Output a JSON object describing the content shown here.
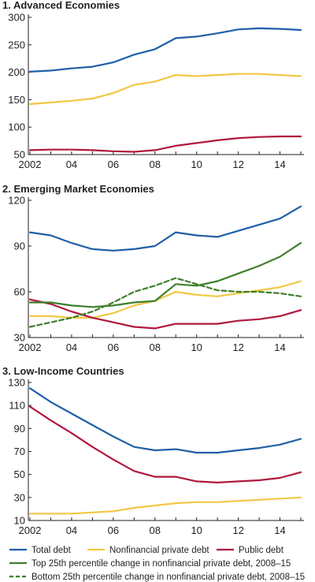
{
  "colors": {
    "total": "#1f5fa8",
    "private": "#f2c744",
    "public": "#b0183d",
    "top25": "#3f7f2c",
    "bottom25": "#3f7f2c"
  },
  "legend": {
    "total": "Total debt",
    "private": "Nonfinancial private debt",
    "public": "Public debt",
    "top25": "Top 25th percentile change in nonfinancial private debt, 2008–15",
    "bottom25": "Bottom 25th percentile change in nonfinancial private debt, 2008–15"
  },
  "chart_data": [
    {
      "type": "line",
      "title": "1. Advanced Economies",
      "x": [
        2002,
        2003,
        2004,
        2005,
        2006,
        2007,
        2008,
        2009,
        2010,
        2011,
        2012,
        2013,
        2014,
        2015
      ],
      "x_tick_labels": [
        "2002",
        "04",
        "06",
        "08",
        "10",
        "12",
        "14"
      ],
      "ylim": [
        50,
        300
      ],
      "y_ticks": [
        50,
        100,
        150,
        200,
        250,
        300
      ],
      "grid": false,
      "series": [
        {
          "key": "total",
          "name": "Total debt",
          "style": "solid",
          "values": [
            201,
            203,
            207,
            210,
            218,
            232,
            242,
            262,
            265,
            271,
            278,
            280,
            279,
            277
          ]
        },
        {
          "key": "private",
          "name": "Nonfinancial private debt",
          "style": "solid",
          "values": [
            142,
            145,
            148,
            152,
            162,
            177,
            183,
            195,
            193,
            195,
            197,
            197,
            195,
            193
          ]
        },
        {
          "key": "public",
          "name": "Public debt",
          "style": "solid",
          "values": [
            58,
            59,
            59,
            58,
            56,
            55,
            58,
            66,
            71,
            76,
            80,
            82,
            83,
            83
          ]
        }
      ]
    },
    {
      "type": "line",
      "title": "2. Emerging Market Economies",
      "x": [
        2002,
        2003,
        2004,
        2005,
        2006,
        2007,
        2008,
        2009,
        2010,
        2011,
        2012,
        2013,
        2014,
        2015
      ],
      "x_tick_labels": [
        "2002",
        "04",
        "06",
        "08",
        "10",
        "12",
        "14"
      ],
      "ylim": [
        30,
        120
      ],
      "y_ticks": [
        30,
        60,
        90,
        120
      ],
      "grid": false,
      "series": [
        {
          "key": "total",
          "name": "Total debt",
          "style": "solid",
          "values": [
            99,
            97,
            92,
            88,
            87,
            88,
            90,
            99,
            97,
            96,
            100,
            104,
            108,
            116
          ]
        },
        {
          "key": "private",
          "name": "Nonfinancial private debt",
          "style": "solid",
          "values": [
            44,
            44,
            43,
            43,
            46,
            51,
            54,
            60,
            58,
            57,
            59,
            61,
            63,
            67
          ]
        },
        {
          "key": "public",
          "name": "Public debt",
          "style": "solid",
          "values": [
            55,
            52,
            47,
            43,
            40,
            37,
            36,
            39,
            39,
            39,
            41,
            42,
            44,
            48
          ]
        },
        {
          "key": "top25",
          "name": "Top 25th percentile change in nonfinancial private debt, 2008–15",
          "style": "solid",
          "values": [
            53,
            53,
            51,
            50,
            51,
            53,
            54,
            65,
            64,
            67,
            72,
            77,
            83,
            92
          ]
        },
        {
          "key": "bottom25",
          "name": "Bottom 25th percentile change in nonfinancial private debt, 2008–15",
          "style": "dashed",
          "values": [
            37,
            40,
            43,
            47,
            53,
            60,
            64,
            69,
            65,
            61,
            60,
            60,
            59,
            57
          ]
        }
      ]
    },
    {
      "type": "line",
      "title": "3. Low-Income Countries",
      "x": [
        2002,
        2003,
        2004,
        2005,
        2006,
        2007,
        2008,
        2009,
        2010,
        2011,
        2012,
        2013,
        2014,
        2015
      ],
      "x_tick_labels": [
        "2002",
        "04",
        "06",
        "08",
        "10",
        "12",
        "14"
      ],
      "ylim": [
        10,
        130
      ],
      "y_ticks": [
        10,
        30,
        50,
        70,
        90,
        110,
        130
      ],
      "grid": false,
      "series": [
        {
          "key": "total",
          "name": "Total debt",
          "style": "solid",
          "values": [
            125,
            113,
            103,
            93,
            83,
            74,
            71,
            72,
            69,
            69,
            71,
            73,
            76,
            81
          ]
        },
        {
          "key": "private",
          "name": "Nonfinancial private debt",
          "style": "solid",
          "values": [
            16,
            16,
            16,
            17,
            18,
            21,
            23,
            25,
            26,
            26,
            27,
            28,
            29,
            30
          ]
        },
        {
          "key": "public",
          "name": "Public debt",
          "style": "solid",
          "values": [
            109,
            97,
            86,
            74,
            63,
            53,
            48,
            48,
            44,
            43,
            44,
            45,
            47,
            52
          ]
        }
      ]
    }
  ]
}
